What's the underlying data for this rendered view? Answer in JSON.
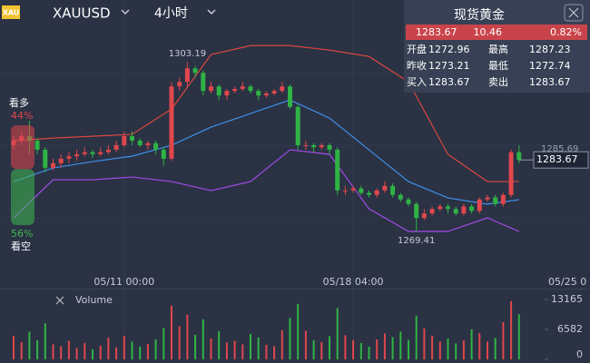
{
  "header": {
    "icon": "XAU",
    "symbol": "XAUUSD",
    "timeframe": "4小时"
  },
  "quote": {
    "title": "现货黄金",
    "last": "1283.67",
    "change": "10.46",
    "change_pct": "0.82%",
    "rows": [
      [
        "开盘",
        "1272.96",
        "最高",
        "1287.23"
      ],
      [
        "昨收",
        "1273.21",
        "最低",
        "1272.74"
      ],
      [
        "买入",
        "1283.67",
        "卖出",
        "1283.67"
      ]
    ]
  },
  "sentiment": {
    "bull_label": "看多",
    "bull": {
      "value": 44,
      "label": "44%"
    },
    "bear": {
      "value": 56,
      "label": "56%"
    },
    "bear_label": "看空",
    "bull_color": "#e0474c",
    "bear_color": "#3fb950"
  },
  "chart_data": [
    {
      "type": "candlestick",
      "up_color": "#e0474c",
      "down_color": "#2fb344",
      "ylim": [
        1261.3,
        1313.7
      ],
      "categories": [
        null,
        null,
        null,
        null,
        null,
        null,
        null,
        null,
        null,
        null,
        null,
        null,
        null,
        null,
        "05/11 00:00",
        null,
        null,
        null,
        null,
        null,
        null,
        null,
        null,
        null,
        null,
        null,
        null,
        null,
        null,
        null,
        null,
        null,
        null,
        null,
        null,
        null,
        null,
        null,
        null,
        null,
        null,
        null,
        null,
        "05/18 04:00",
        null,
        null,
        null,
        null,
        null,
        null,
        null,
        null,
        null,
        null,
        null,
        null,
        null,
        null,
        null,
        null,
        null,
        null,
        null,
        null,
        null
      ],
      "edge_label": "05/25 0",
      "candles": [
        [
          1286.6,
          1288.4,
          1285.7,
          1287.5
        ],
        [
          1287.5,
          1289.3,
          1286.6,
          1288.4
        ],
        [
          1288.4,
          1291.5,
          1284.8,
          1287.5
        ],
        [
          1287.5,
          1288.0,
          1284.8,
          1285.7
        ],
        [
          1285.7,
          1286.2,
          1281.2,
          1282.1
        ],
        [
          1282.1,
          1283.9,
          1281.6,
          1283.0
        ],
        [
          1283.0,
          1284.8,
          1282.1,
          1283.9
        ],
        [
          1283.9,
          1285.2,
          1283.0,
          1284.4
        ],
        [
          1284.4,
          1285.7,
          1283.5,
          1284.8
        ],
        [
          1284.8,
          1286.2,
          1284.4,
          1285.2
        ],
        [
          1285.2,
          1285.7,
          1284.0,
          1284.8
        ],
        [
          1284.8,
          1286.2,
          1284.4,
          1285.2
        ],
        [
          1285.2,
          1286.6,
          1284.8,
          1285.7
        ],
        [
          1285.7,
          1287.5,
          1285.2,
          1286.6
        ],
        [
          1286.6,
          1289.3,
          1286.2,
          1288.4
        ],
        [
          1288.4,
          1289.3,
          1286.6,
          1287.5
        ],
        [
          1287.5,
          1288.0,
          1286.2,
          1286.6
        ],
        [
          1286.6,
          1287.5,
          1285.7,
          1287.0
        ],
        [
          1287.0,
          1287.5,
          1284.8,
          1285.7
        ],
        [
          1285.7,
          1286.2,
          1282.5,
          1283.9
        ],
        [
          1283.9,
          1299.2,
          1283.5,
          1298.3
        ],
        [
          1298.3,
          1300.1,
          1297.4,
          1299.2
        ],
        [
          1299.2,
          1303.19,
          1298.3,
          1301.9
        ],
        [
          1301.9,
          1302.4,
          1300.1,
          1301.0
        ],
        [
          1301.0,
          1301.5,
          1296.5,
          1297.4
        ],
        [
          1297.4,
          1299.2,
          1296.9,
          1298.3
        ],
        [
          1298.3,
          1298.7,
          1295.6,
          1296.5
        ],
        [
          1296.5,
          1297.8,
          1295.6,
          1297.4
        ],
        [
          1297.4,
          1298.3,
          1296.9,
          1297.8
        ],
        [
          1297.8,
          1299.2,
          1297.4,
          1298.3
        ],
        [
          1298.3,
          1298.7,
          1296.9,
          1297.4
        ],
        [
          1297.4,
          1297.8,
          1295.6,
          1296.5
        ],
        [
          1296.5,
          1297.4,
          1296.0,
          1296.9
        ],
        [
          1296.9,
          1297.8,
          1296.5,
          1297.4
        ],
        [
          1297.4,
          1299.2,
          1297.0,
          1298.3
        ],
        [
          1298.3,
          1298.7,
          1293.8,
          1294.2
        ],
        [
          1294.2,
          1294.7,
          1285.7,
          1286.6
        ],
        [
          1286.6,
          1287.5,
          1285.7,
          1286.6
        ],
        [
          1286.6,
          1287.0,
          1285.2,
          1286.2
        ],
        [
          1286.2,
          1287.0,
          1285.7,
          1286.6
        ],
        [
          1286.6,
          1287.0,
          1284.8,
          1285.7
        ],
        [
          1285.7,
          1286.2,
          1276.7,
          1277.6
        ],
        [
          1277.6,
          1278.5,
          1276.7,
          1277.6
        ],
        [
          1277.6,
          1278.5,
          1277.1,
          1278.0
        ],
        [
          1278.0,
          1278.5,
          1276.7,
          1277.1
        ],
        [
          1277.1,
          1277.6,
          1276.2,
          1276.7
        ],
        [
          1276.7,
          1278.0,
          1276.2,
          1277.6
        ],
        [
          1277.6,
          1279.4,
          1277.1,
          1278.5
        ],
        [
          1278.5,
          1279.0,
          1276.2,
          1276.7
        ],
        [
          1276.7,
          1277.1,
          1275.3,
          1275.8
        ],
        [
          1275.8,
          1276.2,
          1274.4,
          1274.9
        ],
        [
          1274.9,
          1275.3,
          1269.41,
          1272.1
        ],
        [
          1272.1,
          1273.9,
          1271.7,
          1273.0
        ],
        [
          1273.0,
          1274.4,
          1272.6,
          1273.9
        ],
        [
          1273.9,
          1274.9,
          1273.5,
          1274.4
        ],
        [
          1274.4,
          1274.9,
          1273.0,
          1273.9
        ],
        [
          1273.9,
          1274.4,
          1272.6,
          1273.0
        ],
        [
          1273.0,
          1274.9,
          1272.6,
          1274.4
        ],
        [
          1274.4,
          1274.9,
          1273.0,
          1273.5
        ],
        [
          1273.5,
          1276.2,
          1273.0,
          1275.8
        ],
        [
          1275.8,
          1276.7,
          1275.3,
          1276.2
        ],
        [
          1276.2,
          1276.7,
          1274.4,
          1274.9
        ],
        [
          1274.9,
          1277.1,
          1274.4,
          1276.7
        ],
        [
          1276.7,
          1285.7,
          1276.2,
          1285.2
        ],
        [
          1285.2,
          1286.6,
          1283.0,
          1283.67
        ]
      ],
      "bands": [
        {
          "color": "#d9473f",
          "x": [
            0,
            5,
            10,
            15,
            20,
            25,
            30,
            35,
            40,
            45,
            50,
            55,
            60,
            64
          ],
          "values": [
            1287.48,
            1288.02,
            1288.38,
            1288.75,
            1293.8,
            1304.63,
            1306.43,
            1306.43,
            1305.53,
            1304.27,
            1299.21,
            1284.77,
            1279.36,
            1279.36
          ]
        },
        {
          "color": "#3f8fe8",
          "x": [
            0,
            5,
            10,
            15,
            20,
            25,
            30,
            35,
            40,
            45,
            50,
            55,
            60,
            64
          ],
          "values": [
            1279.36,
            1282.07,
            1283.33,
            1284.41,
            1286.58,
            1290.19,
            1292.9,
            1295.6,
            1291.99,
            1285.68,
            1279.36,
            1276.11,
            1274.85,
            1275.75
          ]
        },
        {
          "color": "#a24be8",
          "x": [
            0,
            5,
            10,
            15,
            20,
            25,
            30,
            35,
            40,
            45,
            50,
            55,
            60,
            64
          ],
          "values": [
            1272.14,
            1279.72,
            1279.72,
            1280.26,
            1279.36,
            1277.55,
            1279.36,
            1285.68,
            1284.77,
            1273.94,
            1269.43,
            1269.43,
            1272.14,
            1269.43
          ]
        }
      ],
      "annotations": [
        1303.19,
        1269.41
      ],
      "price_tags": [
        1285.69
      ],
      "last_price": 1283.67
    },
    {
      "type": "bar",
      "title": "Volume",
      "ylim": [
        0,
        13165
      ],
      "yticks": [
        0,
        6582,
        13165
      ],
      "values": [
        5200,
        3800,
        6100,
        4200,
        7900,
        3300,
        2900,
        4100,
        2500,
        3600,
        2200,
        3000,
        4800,
        2600,
        5200,
        3900,
        2800,
        3400,
        4400,
        6900,
        11800,
        7300,
        9800,
        5400,
        8800,
        4600,
        6200,
        3700,
        4100,
        3300,
        5600,
        4800,
        3200,
        2900,
        6400,
        9100,
        12200,
        6300,
        4200,
        3800,
        5100,
        11300,
        5300,
        4200,
        3600,
        2800,
        4400,
        5700,
        4900,
        6100,
        4300,
        9600,
        6800,
        5200,
        3900,
        4600,
        3500,
        4200,
        6600,
        5800,
        3900,
        4700,
        8200,
        12800,
        9900
      ]
    }
  ]
}
